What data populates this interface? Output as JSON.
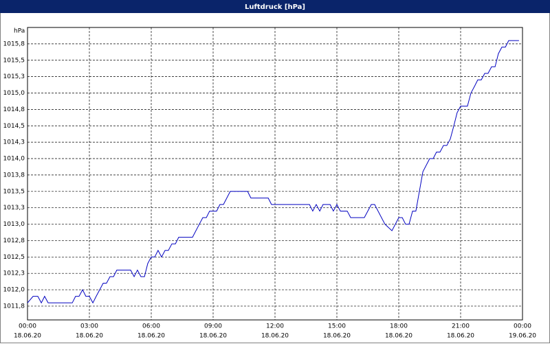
{
  "chart_data": {
    "type": "line",
    "title": "Luftdruck [hPa]",
    "y_label": "hPa",
    "x": [
      0,
      0.27,
      0.5,
      0.67,
      0.83,
      1,
      2.17,
      2.33,
      2.5,
      2.67,
      2.83,
      3,
      3.17,
      3.33,
      3.67,
      3.83,
      4,
      4.17,
      4.33,
      5,
      5.17,
      5.33,
      5.5,
      5.67,
      5.83,
      6,
      6.17,
      6.33,
      6.5,
      6.67,
      6.83,
      7,
      7.17,
      7.33,
      8,
      8.33,
      8.5,
      8.67,
      8.83,
      9.17,
      9.33,
      9.5,
      9.83,
      10.67,
      10.83,
      11.67,
      11.83,
      13.67,
      13.83,
      14,
      14.17,
      14.33,
      14.67,
      14.83,
      15,
      15.17,
      15.5,
      15.67,
      16.33,
      16.67,
      16.83,
      17.33,
      17.67,
      18,
      18.17,
      18.33,
      18.5,
      18.67,
      18.83,
      19,
      19.17,
      19.5,
      19.67,
      19.83,
      20,
      20.17,
      20.33,
      20.5,
      20.67,
      20.83,
      21,
      21.33,
      21.5,
      21.67,
      21.83,
      22,
      22.17,
      22.33,
      22.5,
      22.67,
      22.83,
      23,
      23.17,
      23.33,
      23.83
    ],
    "series": [
      {
        "name": "Luftdruck",
        "color": "#0000c0",
        "values": [
          1011.8,
          1011.9,
          1011.9,
          1011.8,
          1011.9,
          1011.8,
          1011.8,
          1011.9,
          1011.9,
          1012.0,
          1011.9,
          1011.9,
          1011.8,
          1011.9,
          1012.1,
          1012.1,
          1012.2,
          1012.2,
          1012.3,
          1012.3,
          1012.2,
          1012.3,
          1012.2,
          1012.2,
          1012.4,
          1012.5,
          1012.5,
          1012.6,
          1012.5,
          1012.6,
          1012.6,
          1012.7,
          1012.7,
          1012.8,
          1012.8,
          1013.0,
          1013.1,
          1013.1,
          1013.2,
          1013.2,
          1013.3,
          1013.3,
          1013.5,
          1013.5,
          1013.4,
          1013.4,
          1013.3,
          1013.3,
          1013.2,
          1013.3,
          1013.2,
          1013.3,
          1013.3,
          1013.2,
          1013.3,
          1013.2,
          1013.2,
          1013.1,
          1013.1,
          1013.3,
          1013.3,
          1013.0,
          1012.9,
          1013.1,
          1013.1,
          1013.0,
          1013.0,
          1013.2,
          1013.2,
          1013.5,
          1013.8,
          1014.0,
          1014.0,
          1014.1,
          1014.1,
          1014.2,
          1014.2,
          1014.3,
          1014.5,
          1014.7,
          1014.8,
          1014.8,
          1015.0,
          1015.1,
          1015.2,
          1015.2,
          1015.3,
          1015.3,
          1015.4,
          1015.4,
          1015.6,
          1015.7,
          1015.7,
          1015.8,
          1015.8
        ]
      }
    ],
    "xlim": [
      0,
      24
    ],
    "ylim": [
      1011.54,
      1016.0
    ],
    "xticks": [
      {
        "value": 0,
        "label": "00:00"
      },
      {
        "value": 3,
        "label": "03:00"
      },
      {
        "value": 6,
        "label": "06:00"
      },
      {
        "value": 9,
        "label": "09:00"
      },
      {
        "value": 12,
        "label": "12:00"
      },
      {
        "value": 15,
        "label": "15:00"
      },
      {
        "value": 18,
        "label": "18:00"
      },
      {
        "value": 21,
        "label": "21:00"
      },
      {
        "value": 24,
        "label": "00:00"
      }
    ],
    "xtick_dates": [
      "18.06.20",
      "18.06.20",
      "18.06.20",
      "18.06.20",
      "18.06.20",
      "18.06.20",
      "18.06.20",
      "18.06.20",
      "19.06.20"
    ],
    "yticks": [
      {
        "value": 1011.75,
        "label": "1011,8"
      },
      {
        "value": 1012.0,
        "label": "1012,0"
      },
      {
        "value": 1012.25,
        "label": "1012,3"
      },
      {
        "value": 1012.5,
        "label": "1012,5"
      },
      {
        "value": 1012.75,
        "label": "1012,8"
      },
      {
        "value": 1013.0,
        "label": "1013,0"
      },
      {
        "value": 1013.25,
        "label": "1013,3"
      },
      {
        "value": 1013.5,
        "label": "1013,5"
      },
      {
        "value": 1013.75,
        "label": "1013,8"
      },
      {
        "value": 1014.0,
        "label": "1014,0"
      },
      {
        "value": 1014.25,
        "label": "1014,3"
      },
      {
        "value": 1014.5,
        "label": "1014,5"
      },
      {
        "value": 1014.75,
        "label": "1014,8"
      },
      {
        "value": 1015.0,
        "label": "1015,0"
      },
      {
        "value": 1015.25,
        "label": "1015,3"
      },
      {
        "value": 1015.5,
        "label": "1015,5"
      },
      {
        "value": 1015.75,
        "label": "1015,8"
      }
    ],
    "grid": true
  }
}
